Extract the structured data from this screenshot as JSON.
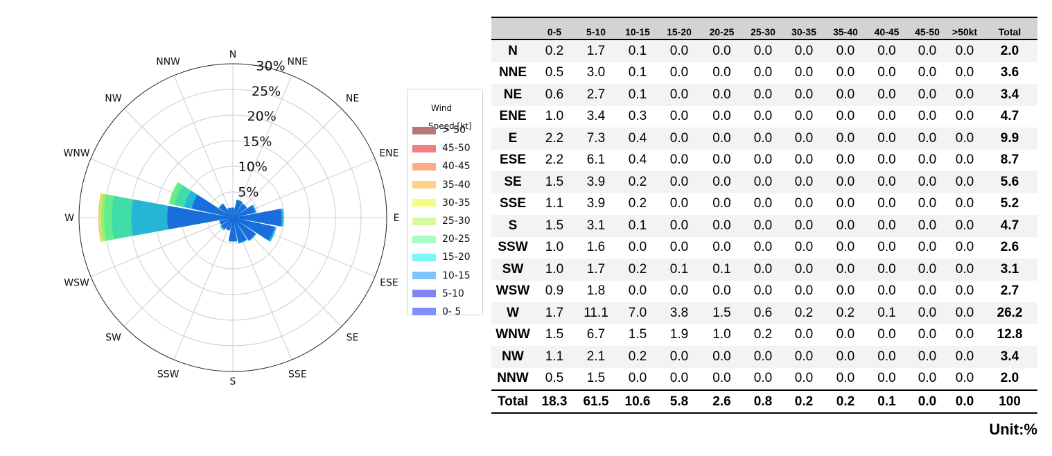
{
  "chart_data": [
    {
      "type": "windrose",
      "directions": [
        "N",
        "NNE",
        "NE",
        "ENE",
        "E",
        "ESE",
        "SE",
        "SSE",
        "S",
        "SSW",
        "SW",
        "WSW",
        "W",
        "WNW",
        "NW",
        "NNW"
      ],
      "radial_ticks": [
        "5%",
        "10%",
        "15%",
        "20%",
        "25%",
        "30%"
      ],
      "radial_values": [
        5,
        10,
        15,
        20,
        25,
        30
      ],
      "rmax": 30,
      "legend_title": [
        "Wind",
        "Speed [kt]"
      ],
      "legend": [
        {
          "label": "> 50",
          "color": "#b87676"
        },
        {
          "label": "45-50",
          "color": "#f27f7f"
        },
        {
          "label": "40-45",
          "color": "#ffa985"
        },
        {
          "label": "35-40",
          "color": "#ffd184"
        },
        {
          "label": "30-35",
          "color": "#f7fb7f"
        },
        {
          "label": "25-30",
          "color": "#d5fb9e"
        },
        {
          "label": "20-25",
          "color": "#a6fdc7"
        },
        {
          "label": "15-20",
          "color": "#7cf8f3"
        },
        {
          "label": "10-15",
          "color": "#7cc4f9"
        },
        {
          "label": "5-10",
          "color": "#7f86f3"
        },
        {
          "label": "0- 5",
          "color": "#7f91f5"
        }
      ],
      "sector_colors": [
        "#1566d8",
        "#1a6edc",
        "#27b5d6",
        "#41dda9",
        "#63ec8c",
        "#8ef27a",
        "#c4f06c",
        "#f3df5c",
        "#f8a347",
        "#e7473e",
        "#9b2a2a"
      ]
    },
    {
      "type": "table",
      "columns": [
        "0-5",
        "5-10",
        "10-15",
        "15-20",
        "20-25",
        "25-30",
        "30-35",
        "35-40",
        "40-45",
        "45-50",
        ">50kt",
        "Total"
      ],
      "rows": [
        {
          "dir": "N",
          "values": [
            0.2,
            1.7,
            0.1,
            0.0,
            0.0,
            0.0,
            0.0,
            0.0,
            0.0,
            0.0,
            0.0
          ],
          "total": "2.0"
        },
        {
          "dir": "NNE",
          "values": [
            0.5,
            3.0,
            0.1,
            0.0,
            0.0,
            0.0,
            0.0,
            0.0,
            0.0,
            0.0,
            0.0
          ],
          "total": "3.6"
        },
        {
          "dir": "NE",
          "values": [
            0.6,
            2.7,
            0.1,
            0.0,
            0.0,
            0.0,
            0.0,
            0.0,
            0.0,
            0.0,
            0.0
          ],
          "total": "3.4"
        },
        {
          "dir": "ENE",
          "values": [
            1.0,
            3.4,
            0.3,
            0.0,
            0.0,
            0.0,
            0.0,
            0.0,
            0.0,
            0.0,
            0.0
          ],
          "total": "4.7"
        },
        {
          "dir": "E",
          "values": [
            2.2,
            7.3,
            0.4,
            0.0,
            0.0,
            0.0,
            0.0,
            0.0,
            0.0,
            0.0,
            0.0
          ],
          "total": "9.9"
        },
        {
          "dir": "ESE",
          "values": [
            2.2,
            6.1,
            0.4,
            0.0,
            0.0,
            0.0,
            0.0,
            0.0,
            0.0,
            0.0,
            0.0
          ],
          "total": "8.7"
        },
        {
          "dir": "SE",
          "values": [
            1.5,
            3.9,
            0.2,
            0.0,
            0.0,
            0.0,
            0.0,
            0.0,
            0.0,
            0.0,
            0.0
          ],
          "total": "5.6"
        },
        {
          "dir": "SSE",
          "values": [
            1.1,
            3.9,
            0.2,
            0.0,
            0.0,
            0.0,
            0.0,
            0.0,
            0.0,
            0.0,
            0.0
          ],
          "total": "5.2"
        },
        {
          "dir": "S",
          "values": [
            1.5,
            3.1,
            0.1,
            0.0,
            0.0,
            0.0,
            0.0,
            0.0,
            0.0,
            0.0,
            0.0
          ],
          "total": "4.7"
        },
        {
          "dir": "SSW",
          "values": [
            1.0,
            1.6,
            0.0,
            0.0,
            0.0,
            0.0,
            0.0,
            0.0,
            0.0,
            0.0,
            0.0
          ],
          "total": "2.6"
        },
        {
          "dir": "SW",
          "values": [
            1.0,
            1.7,
            0.2,
            0.1,
            0.1,
            0.0,
            0.0,
            0.0,
            0.0,
            0.0,
            0.0
          ],
          "total": "3.1"
        },
        {
          "dir": "WSW",
          "values": [
            0.9,
            1.8,
            0.0,
            0.0,
            0.0,
            0.0,
            0.0,
            0.0,
            0.0,
            0.0,
            0.0
          ],
          "total": "2.7"
        },
        {
          "dir": "W",
          "values": [
            1.7,
            11.1,
            7.0,
            3.8,
            1.5,
            0.6,
            0.2,
            0.2,
            0.1,
            0.0,
            0.0
          ],
          "total": "26.2"
        },
        {
          "dir": "WNW",
          "values": [
            1.5,
            6.7,
            1.5,
            1.9,
            1.0,
            0.2,
            0.0,
            0.0,
            0.0,
            0.0,
            0.0
          ],
          "total": "12.8"
        },
        {
          "dir": "NW",
          "values": [
            1.1,
            2.1,
            0.2,
            0.0,
            0.0,
            0.0,
            0.0,
            0.0,
            0.0,
            0.0,
            0.0
          ],
          "total": "3.4"
        },
        {
          "dir": "NNW",
          "values": [
            0.5,
            1.5,
            0.0,
            0.0,
            0.0,
            0.0,
            0.0,
            0.0,
            0.0,
            0.0,
            0.0
          ],
          "total": "2.0"
        }
      ],
      "total_row": {
        "label": "Total",
        "values": [
          "18.3",
          "61.5",
          "10.6",
          "5.8",
          "2.6",
          "0.8",
          "0.2",
          "0.2",
          "0.1",
          "0.0",
          "0.0"
        ],
        "total": "100"
      },
      "unit": "Unit:%"
    }
  ]
}
